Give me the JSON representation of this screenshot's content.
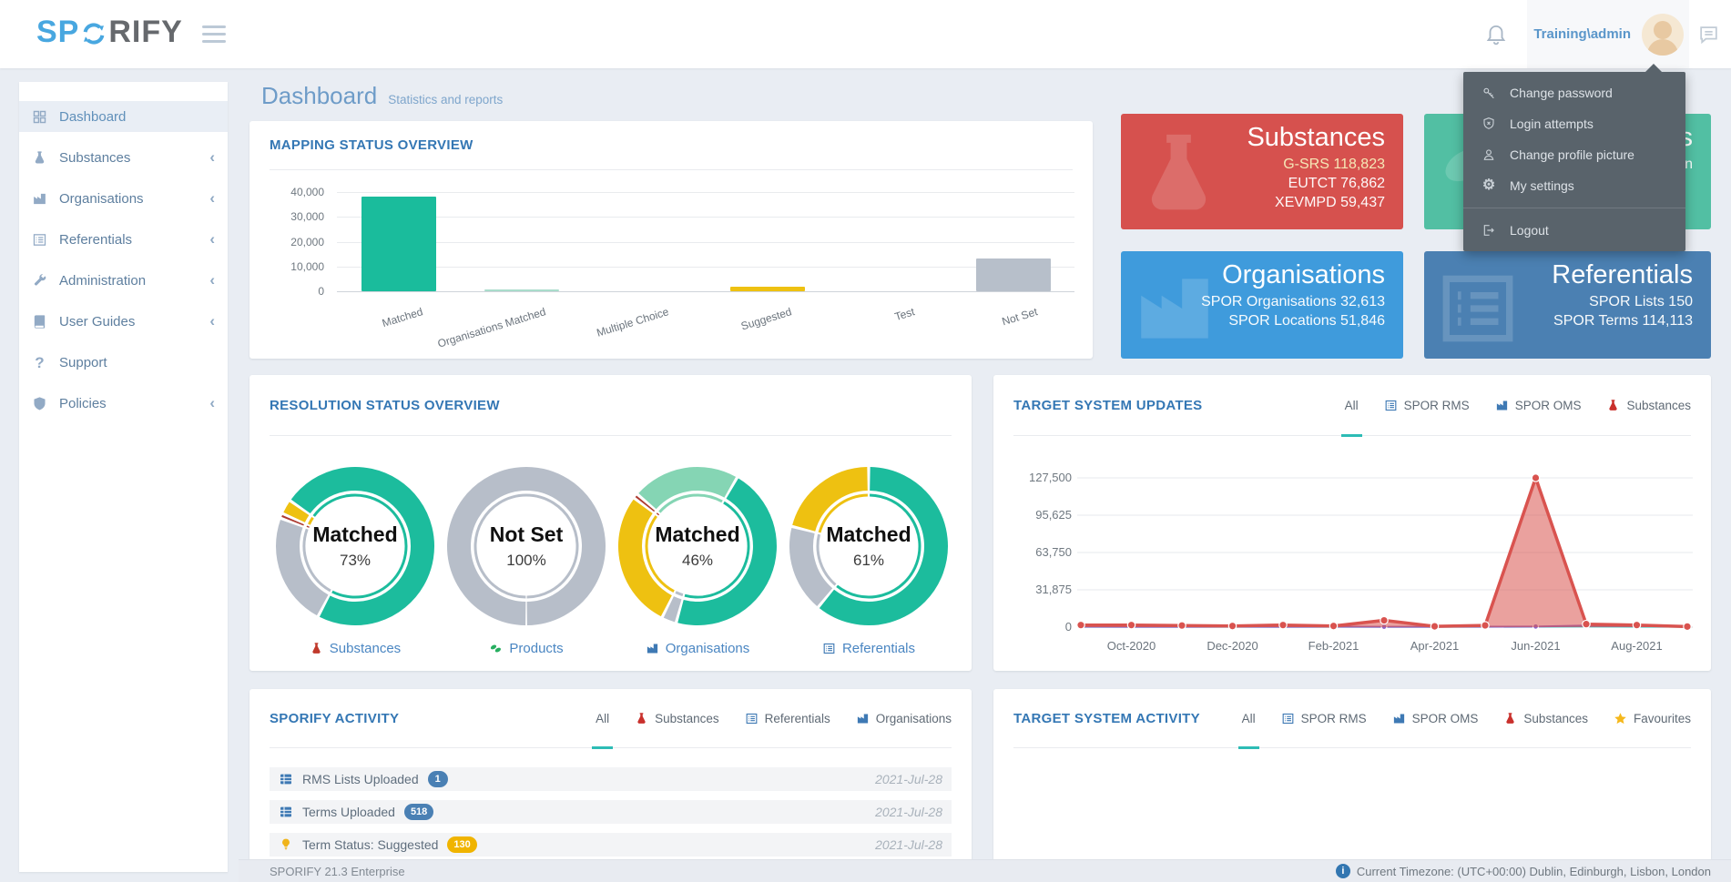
{
  "navbar": {
    "logo_sp": "SP",
    "logo_rify": "RIFY",
    "username": "Training\\admin"
  },
  "user_menu": {
    "items": [
      {
        "icon": "key",
        "label": "Change password"
      },
      {
        "icon": "shield-x",
        "label": "Login attempts"
      },
      {
        "icon": "person",
        "label": "Change profile picture"
      },
      {
        "icon": "gear",
        "label": "My settings"
      }
    ],
    "logout": {
      "icon": "exit",
      "label": "Logout"
    }
  },
  "sidebar": {
    "items": [
      {
        "icon": "grid",
        "label": "Dashboard",
        "active": true,
        "chevron": false
      },
      {
        "icon": "flask",
        "label": "Substances",
        "active": false,
        "chevron": true
      },
      {
        "icon": "factory",
        "label": "Organisations",
        "active": false,
        "chevron": true
      },
      {
        "icon": "list",
        "label": "Referentials",
        "active": false,
        "chevron": true
      },
      {
        "icon": "wrench",
        "label": "Administration",
        "active": false,
        "chevron": true
      },
      {
        "icon": "book",
        "label": "User Guides",
        "active": false,
        "chevron": true
      },
      {
        "icon": "question",
        "label": "Support",
        "active": false,
        "chevron": false
      },
      {
        "icon": "shield",
        "label": "Policies",
        "active": false,
        "chevron": true
      }
    ]
  },
  "page": {
    "title": "Dashboard",
    "subtitle": "Statistics and reports"
  },
  "cards": [
    {
      "id": "substances",
      "color": "#d6514e",
      "icon": "flask",
      "title": "Substances",
      "lines": [
        {
          "text": "G-SRS 118,823",
          "color": "#f7eebb"
        },
        {
          "text": "EUTCT 76,862"
        },
        {
          "text": "XEVMPD 59,437"
        }
      ]
    },
    {
      "id": "products-partial",
      "color": "#52bfa3",
      "icon": "pills",
      "title_fragment": "ts",
      "line_fragment": "on"
    },
    {
      "id": "organisations",
      "color": "#3f9bdc",
      "icon": "factory",
      "title": "Organisations",
      "lines": [
        {
          "text": "SPOR Organisations 32,613"
        },
        {
          "text": "SPOR Locations 51,846"
        }
      ]
    },
    {
      "id": "referentials",
      "color": "#4b80b2",
      "icon": "list",
      "title": "Referentials",
      "lines": [
        {
          "text": "SPOR Lists 150"
        },
        {
          "text": "SPOR Terms 114,113"
        }
      ]
    }
  ],
  "panels": {
    "mapping": {
      "title": "MAPPING STATUS OVERVIEW"
    },
    "resolution": {
      "title": "RESOLUTION STATUS OVERVIEW"
    },
    "updates": {
      "title": "TARGET SYSTEM UPDATES",
      "tabs": [
        {
          "label": "All",
          "active": true
        },
        {
          "label": "SPOR RMS",
          "icon": "list",
          "icon_color": "#3e79b4"
        },
        {
          "label": "SPOR OMS",
          "icon": "factory",
          "icon_color": "#3e79b4"
        },
        {
          "label": "Substances",
          "icon": "flask",
          "icon_color": "#c9302c"
        }
      ]
    },
    "sporify_activity": {
      "title": "SPORIFY ACTIVITY",
      "tabs": [
        {
          "label": "All",
          "active": true
        },
        {
          "label": "Substances",
          "icon": "flask",
          "icon_color": "#c9302c"
        },
        {
          "label": "Referentials",
          "icon": "list",
          "icon_color": "#3e79b4"
        },
        {
          "label": "Organisations",
          "icon": "factory",
          "icon_color": "#3e79b4"
        }
      ],
      "rows": [
        {
          "icon": "table",
          "icon_color": "#3e79b4",
          "label": "RMS Lists Uploaded",
          "badge": "1",
          "badge_color": "#4a80b4",
          "date": "2021-Jul-28"
        },
        {
          "icon": "table",
          "icon_color": "#3e79b4",
          "label": "Terms Uploaded",
          "badge": "518",
          "badge_color": "#4a80b4",
          "date": "2021-Jul-28"
        },
        {
          "icon": "lightbulb",
          "icon_color": "#f0b41a",
          "label": "Term Status: Suggested",
          "badge": "130",
          "badge_color": "#f0b400",
          "date": "2021-Jul-28"
        }
      ]
    },
    "target_activity": {
      "title": "TARGET SYSTEM ACTIVITY",
      "tabs": [
        {
          "label": "All",
          "active": true
        },
        {
          "label": "SPOR RMS",
          "icon": "list",
          "icon_color": "#3e79b4"
        },
        {
          "label": "SPOR OMS",
          "icon": "factory",
          "icon_color": "#3e79b4"
        },
        {
          "label": "Substances",
          "icon": "flask",
          "icon_color": "#c9302c"
        },
        {
          "label": "Favourites",
          "icon": "star",
          "icon_color": "#f5b81c"
        }
      ]
    }
  },
  "footer": {
    "version": "SPORIFY 21.3 Enterprise",
    "timezone": "Current Timezone: (UTC+00:00) Dublin, Edinburgh, Lisbon, London"
  },
  "chart_data": [
    {
      "type": "bar",
      "title": "MAPPING STATUS OVERVIEW",
      "categories": [
        "Matched",
        "Organisations Matched",
        "Multiple Choice",
        "Suggested",
        "Test",
        "Not Set"
      ],
      "values": [
        38200,
        900,
        0,
        1800,
        0,
        13100
      ],
      "colors": [
        "#1abc9c",
        "#a9dccb",
        "#1abc9c",
        "#eec111",
        "#b7bfca",
        "#b7bfca"
      ],
      "ylim": [
        0,
        40000
      ],
      "yticks": [
        0,
        10000,
        20000,
        30000,
        40000
      ],
      "ylabels": [
        "0",
        "10,000",
        "20,000",
        "30,000",
        "40,000"
      ],
      "grid": true
    },
    {
      "type": "donut-set",
      "title": "RESOLUTION STATUS OVERVIEW",
      "donuts": [
        {
          "label": "Substances",
          "icon": "flask",
          "icon_color": "#c0392b",
          "status": "Matched",
          "pct": "73%",
          "start": -55,
          "segments": [
            {
              "name": "Matched",
              "value": 73,
              "color": "#1cbc9d"
            },
            {
              "name": "Not Set",
              "value": 23,
              "color": "#b7bec9"
            },
            {
              "name": "Error",
              "value": 1,
              "color": "#ad3a30"
            },
            {
              "name": "Suggested",
              "value": 3,
              "color": "#eec111"
            }
          ]
        },
        {
          "label": "Products",
          "icon": "pills",
          "icon_color": "#27ae60",
          "status": "Not Set",
          "pct": "100%",
          "start": 180,
          "segments": [
            {
              "name": "Not Set",
              "value": 100,
              "color": "#b7bec9"
            }
          ]
        },
        {
          "label": "Organisations",
          "icon": "factory",
          "icon_color": "#3e79b4",
          "status": "Matched",
          "pct": "46%",
          "start": 30,
          "segments": [
            {
              "name": "Matched",
              "value": 46,
              "color": "#1cbc9d"
            },
            {
              "name": "Not Set",
              "value": 3,
              "color": "#b7bec9"
            },
            {
              "name": "Suggested",
              "value": 28,
              "color": "#eec111"
            },
            {
              "name": "Error",
              "value": 1,
              "color": "#ad3a30"
            },
            {
              "name": "Auto Matched",
              "value": 22,
              "color": "#85d5b4"
            }
          ]
        },
        {
          "label": "Referentials",
          "icon": "list",
          "icon_color": "#3e79b4",
          "status": "Matched",
          "pct": "61%",
          "start": 0,
          "segments": [
            {
              "name": "Matched",
              "value": 61,
              "color": "#1cbc9d"
            },
            {
              "name": "Not Set",
              "value": 18,
              "color": "#b7bec9"
            },
            {
              "name": "Suggested",
              "value": 21,
              "color": "#eec111"
            }
          ]
        }
      ]
    },
    {
      "type": "area",
      "title": "TARGET SYSTEM UPDATES",
      "x": [
        "Sep-2020",
        "Oct-2020",
        "Nov-2020",
        "Dec-2020",
        "Jan-2021",
        "Feb-2021",
        "Mar-2021",
        "Apr-2021",
        "May-2021",
        "Jun-2021",
        "Jul-2021",
        "Aug-2021",
        "Sep-2021"
      ],
      "x_labels": [
        {
          "index": 1,
          "label": "Oct-2020"
        },
        {
          "index": 3,
          "label": "Dec-2020"
        },
        {
          "index": 5,
          "label": "Feb-2021"
        },
        {
          "index": 7,
          "label": "Apr-2021"
        },
        {
          "index": 9,
          "label": "Jun-2021"
        },
        {
          "index": 11,
          "label": "Aug-2021"
        }
      ],
      "ylim": [
        0,
        127500
      ],
      "yticks": [
        0,
        31875,
        63750,
        95625,
        127500
      ],
      "ylabels": [
        "0",
        "31,875",
        "63,750",
        "95,625",
        "127,500"
      ],
      "grid": true,
      "series": [
        {
          "name": "SPOR RMS",
          "color": "#2fc4be",
          "width": 1.6,
          "markers": false,
          "fill": false,
          "values": [
            150,
            120,
            120,
            150,
            120,
            150,
            120,
            120,
            150,
            200,
            400,
            250,
            120
          ]
        },
        {
          "name": "SPOR OMS",
          "color": "#8d64c8",
          "width": 2,
          "markers": true,
          "fill": false,
          "values": [
            350,
            300,
            300,
            350,
            300,
            350,
            300,
            300,
            350,
            500,
            1300,
            900,
            300
          ]
        },
        {
          "name": "Substances",
          "color": "#d9534f",
          "width": 3.5,
          "markers": true,
          "fill": true,
          "values": [
            1800,
            1800,
            1400,
            1000,
            1800,
            1000,
            5800,
            700,
            1500,
            127500,
            2600,
            1800,
            500
          ]
        }
      ]
    }
  ]
}
